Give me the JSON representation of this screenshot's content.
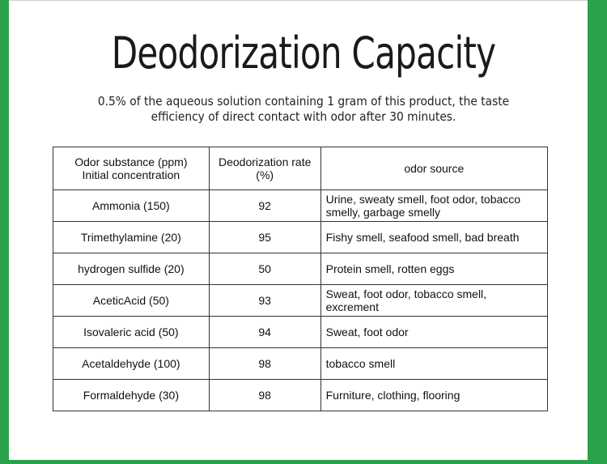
{
  "title": "Deodorization Capacity",
  "subtitle_line1": "0.5% of the aqueous solution containing 1 gram of this product, the taste",
  "subtitle_line2": "efficiency of direct contact with odor after 30 minutes.",
  "colors": {
    "frame_green": "#2aa24c"
  },
  "table": {
    "headers": {
      "col1_line1": "Odor substance (ppm)",
      "col1_line2": "Initial concentration",
      "col2_line1": "Deodorization rate",
      "col2_line2": "(%)",
      "col3": "odor source"
    },
    "rows": [
      {
        "substance": "Ammonia  (150)",
        "rate": "92",
        "source": "Urine, sweaty smell, foot odor, tobacco smelly, garbage smelly"
      },
      {
        "substance": "Trimethylamine  (20)",
        "rate": "95",
        "source": "Fishy smell, seafood smell, bad breath"
      },
      {
        "substance": "hydrogen sulfide  (20)",
        "rate": "50",
        "source": "Protein smell, rotten eggs"
      },
      {
        "substance": "AceticAcid  (50)",
        "rate": "93",
        "source": "Sweat, foot odor, tobacco smell, excrement"
      },
      {
        "substance": "Isovaleric acid  (50)",
        "rate": "94",
        "source": "Sweat, foot odor"
      },
      {
        "substance": "Acetaldehyde  (100)",
        "rate": "98",
        "source": "tobacco smell"
      },
      {
        "substance": "Formaldehyde  (30)",
        "rate": "98",
        "source": "Furniture, clothing, flooring"
      }
    ]
  }
}
